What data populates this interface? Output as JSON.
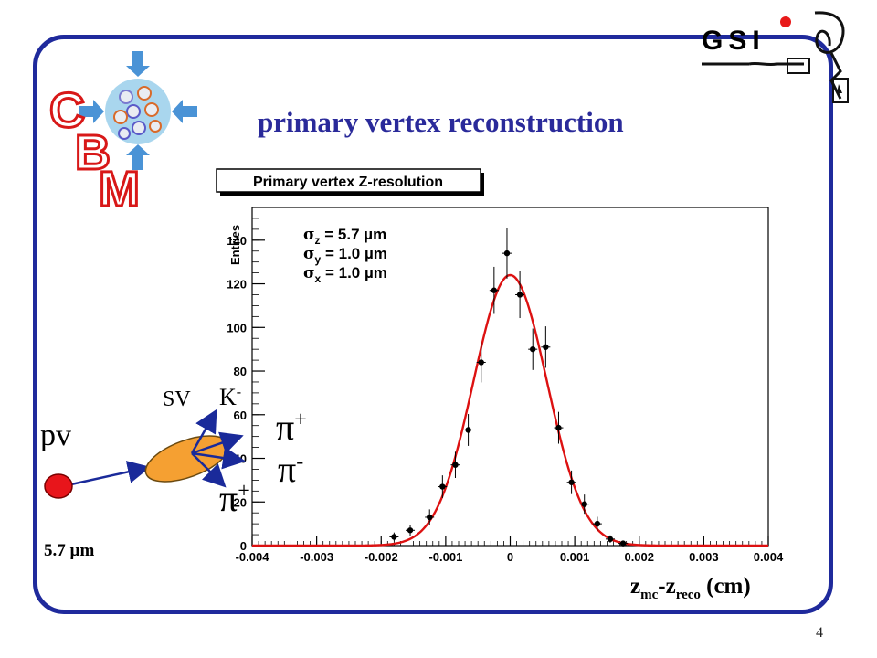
{
  "slide": {
    "title": "primary vertex reconstruction",
    "page_number": "4",
    "x_axis_label": {
      "main": "z",
      "sub1": "mc",
      "dash": "-z",
      "sub2": "reco",
      "unit": " (cm)"
    }
  },
  "logo": {
    "c": "C",
    "b": "B",
    "m": "M",
    "gsi": "GSI"
  },
  "diagram": {
    "pv_label": "pv",
    "sv_label": "SV",
    "kaon": {
      "base": "K",
      "sign": "-"
    },
    "pion1": {
      "base": "π",
      "sign": "+"
    },
    "pion2": {
      "base": "π",
      "sign": "-"
    },
    "pion3": {
      "base": "π",
      "sign": "+"
    },
    "scale": "5.7 µm",
    "colors": {
      "pv": "#e8151b",
      "sv": "#f5a032"
    }
  },
  "chart_data": {
    "type": "scatter",
    "title": "Primary vertex Z-resolution",
    "ylabel": "Entries",
    "xlim": [
      -0.004,
      0.004
    ],
    "ylim": [
      0,
      155
    ],
    "x_ticks": [
      -0.004,
      -0.003,
      -0.002,
      -0.001,
      0,
      0.001,
      0.002,
      0.003,
      0.004
    ],
    "x_tick_labels": [
      "-0.004",
      "-0.003",
      "-0.002",
      "-0.001",
      "0",
      "0.001",
      "0.002",
      "0.003",
      "0.004"
    ],
    "y_ticks": [
      0,
      20,
      40,
      60,
      80,
      100,
      120,
      140
    ],
    "y_tick_labels": [
      "0",
      "20",
      "40",
      "60",
      "80",
      "100",
      "120",
      "140"
    ],
    "stats": [
      {
        "sym": "σ",
        "sub": "z",
        "text": " = 5.7 µm"
      },
      {
        "sym": "σ",
        "sub": "y",
        "text": " = 1.0 µm"
      },
      {
        "sym": "σ",
        "sub": "x",
        "text": " = 1.0 µm"
      }
    ],
    "points": [
      {
        "x": -0.0018,
        "y": 4,
        "err": 2
      },
      {
        "x": -0.00155,
        "y": 7,
        "err": 2.6
      },
      {
        "x": -0.00125,
        "y": 13,
        "err": 3.6
      },
      {
        "x": -0.00105,
        "y": 27,
        "err": 5.2
      },
      {
        "x": -0.00085,
        "y": 37,
        "err": 6
      },
      {
        "x": -0.00065,
        "y": 53,
        "err": 7.3
      },
      {
        "x": -0.00045,
        "y": 84,
        "err": 9.2
      },
      {
        "x": -0.00025,
        "y": 117,
        "err": 10.8
      },
      {
        "x": -5e-05,
        "y": 134,
        "err": 11.6
      },
      {
        "x": 0.00015,
        "y": 115,
        "err": 10.7
      },
      {
        "x": 0.00035,
        "y": 90,
        "err": 9.5
      },
      {
        "x": 0.00055,
        "y": 91,
        "err": 9.5
      },
      {
        "x": 0.00075,
        "y": 54,
        "err": 7.3
      },
      {
        "x": 0.00095,
        "y": 29,
        "err": 5.4
      },
      {
        "x": 0.00115,
        "y": 19,
        "err": 4.4
      },
      {
        "x": 0.00135,
        "y": 10,
        "err": 3.2
      },
      {
        "x": 0.00155,
        "y": 3,
        "err": 1.7
      },
      {
        "x": 0.00175,
        "y": 1,
        "err": 1
      }
    ],
    "fit": {
      "type": "gaussian",
      "amplitude": 124,
      "mean": 0,
      "sigma": 0.00057,
      "color": "#dd1111"
    }
  }
}
